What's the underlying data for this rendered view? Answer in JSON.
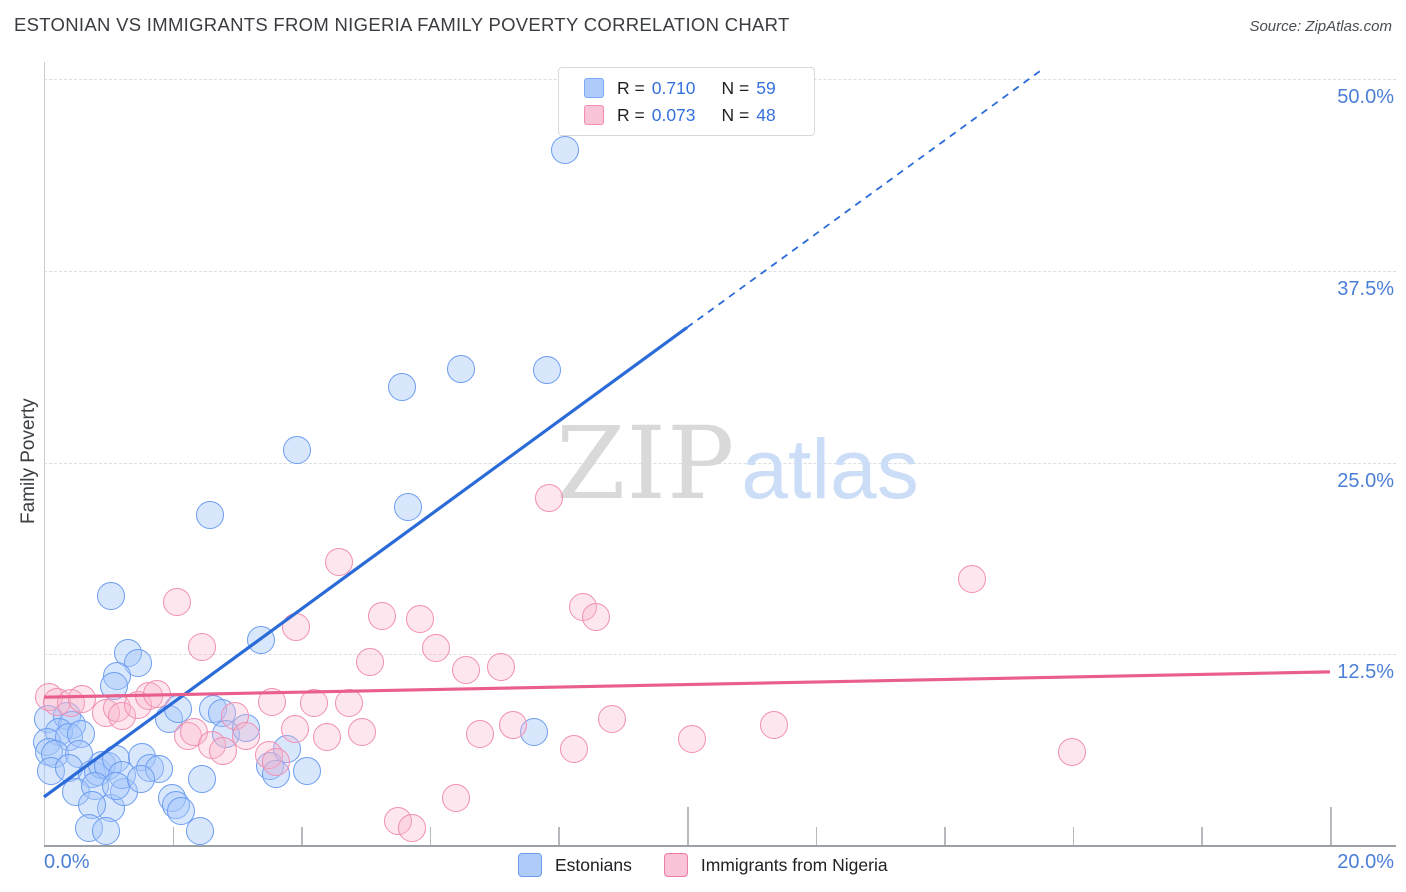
{
  "header": {
    "title": "ESTONIAN VS IMMIGRANTS FROM NIGERIA FAMILY POVERTY CORRELATION CHART",
    "source": "Source: ZipAtlas.com"
  },
  "watermark": {
    "zip": "ZIP",
    "atlas": "atlas"
  },
  "axes": {
    "y_title": "Family Poverty",
    "y_tick_labels": [
      "50.0%",
      "37.5%",
      "25.0%",
      "12.5%"
    ],
    "x_left_label": "0.0%",
    "x_right_label": "20.0%"
  },
  "legend_box": {
    "rows": [
      {
        "r_label": "R =",
        "r_value": "0.710",
        "n_label": "N =",
        "n_value": "59"
      },
      {
        "r_label": "R =",
        "r_value": "0.073",
        "n_label": "N =",
        "n_value": "48"
      }
    ]
  },
  "legend_bottom": {
    "items": [
      {
        "label": "Estonians"
      },
      {
        "label": "Immigrants from Nigeria"
      }
    ]
  },
  "colors": {
    "blue_fill": "#aecbfa",
    "blue_stroke": "#6d9df0",
    "blue_trend": "#2a6bd8",
    "pink_fill": "#f9c4d8",
    "pink_stroke": "#f18fb2",
    "pink_trend": "#e95e8c",
    "tick_label_blue": "#4b7fd6",
    "grid": "#dbdee2"
  },
  "chart_data": {
    "type": "scatter",
    "title": "ESTONIAN VS IMMIGRANTS FROM NIGERIA FAMILY POVERTY CORRELATION CHART",
    "xlabel": "",
    "ylabel": "Family Poverty",
    "x_range_percent": [
      0,
      20
    ],
    "y_range_percent": [
      0,
      51
    ],
    "gridlines_y_percent": [
      50,
      37.5,
      25,
      12.5
    ],
    "x_minor_ticks_percent": [
      2,
      4,
      6,
      8,
      12,
      14,
      16,
      18
    ],
    "x_major_ticks_percent": [
      10,
      20
    ],
    "legend_position": "bottom",
    "series": [
      {
        "name": "Estonians",
        "R": 0.71,
        "N": 59,
        "class": "s0",
        "points": [
          [
            8.11,
            45.4
          ],
          [
            6.48,
            31.1
          ],
          [
            7.83,
            31.0
          ],
          [
            5.57,
            29.9
          ],
          [
            3.93,
            25.8
          ],
          [
            5.66,
            22.1
          ],
          [
            2.58,
            21.6
          ],
          [
            1.04,
            16.3
          ],
          [
            1.31,
            12.6
          ],
          [
            1.46,
            11.9
          ],
          [
            1.13,
            11.1
          ],
          [
            1.09,
            10.4
          ],
          [
            3.37,
            13.4
          ],
          [
            0.06,
            8.3
          ],
          [
            0.36,
            8.5
          ],
          [
            0.44,
            7.9
          ],
          [
            0.23,
            7.4
          ],
          [
            0.05,
            6.8
          ],
          [
            0.39,
            7.1
          ],
          [
            0.58,
            7.3
          ],
          [
            0.08,
            6.1
          ],
          [
            0.17,
            6.0
          ],
          [
            0.54,
            6.0
          ],
          [
            0.11,
            4.9
          ],
          [
            0.39,
            5.1
          ],
          [
            0.75,
            4.7
          ],
          [
            0.84,
            4.8
          ],
          [
            0.9,
            5.3
          ],
          [
            0.99,
            5.2
          ],
          [
            1.12,
            5.7
          ],
          [
            0.5,
            3.5
          ],
          [
            0.79,
            3.9
          ],
          [
            1.04,
            2.5
          ],
          [
            0.75,
            2.7
          ],
          [
            1.24,
            3.5
          ],
          [
            1.21,
            4.6
          ],
          [
            1.12,
            3.9
          ],
          [
            1.52,
            5.8
          ],
          [
            1.65,
            5.1
          ],
          [
            1.79,
            5.0
          ],
          [
            1.51,
            4.4
          ],
          [
            0.7,
            1.2
          ],
          [
            0.96,
            1.0
          ],
          [
            1.94,
            8.3
          ],
          [
            2.08,
            8.9
          ],
          [
            2.63,
            8.9
          ],
          [
            2.77,
            8.7
          ],
          [
            2.83,
            7.3
          ],
          [
            3.14,
            7.7
          ],
          [
            1.99,
            3.1
          ],
          [
            2.05,
            2.7
          ],
          [
            2.13,
            2.3
          ],
          [
            2.46,
            4.4
          ],
          [
            2.42,
            1.0
          ],
          [
            3.51,
            5.2
          ],
          [
            3.61,
            4.7
          ],
          [
            4.09,
            4.9
          ],
          [
            3.78,
            6.3
          ],
          [
            7.62,
            7.4
          ]
        ]
      },
      {
        "name": "Immigrants from Nigeria",
        "R": 0.073,
        "N": 48,
        "class": "s1",
        "points": [
          [
            14.43,
            17.4
          ],
          [
            15.98,
            6.1
          ],
          [
            4.59,
            18.5
          ],
          [
            7.85,
            22.7
          ],
          [
            5.25,
            15.0
          ],
          [
            5.84,
            14.8
          ],
          [
            3.92,
            14.3
          ],
          [
            6.09,
            12.9
          ],
          [
            5.07,
            12.0
          ],
          [
            6.57,
            11.5
          ],
          [
            7.1,
            11.7
          ],
          [
            8.38,
            15.6
          ],
          [
            8.59,
            14.9
          ],
          [
            2.07,
            15.9
          ],
          [
            2.46,
            13.0
          ],
          [
            4.2,
            9.3
          ],
          [
            4.74,
            9.3
          ],
          [
            4.4,
            7.1
          ],
          [
            4.94,
            7.4
          ],
          [
            6.78,
            7.3
          ],
          [
            7.29,
            7.9
          ],
          [
            8.24,
            6.3
          ],
          [
            8.83,
            8.3
          ],
          [
            10.07,
            7.0
          ],
          [
            11.36,
            7.9
          ],
          [
            6.4,
            3.1
          ],
          [
            5.5,
            1.6
          ],
          [
            5.72,
            1.2
          ],
          [
            0.08,
            9.7
          ],
          [
            0.2,
            9.4
          ],
          [
            0.42,
            9.3
          ],
          [
            0.59,
            9.6
          ],
          [
            0.96,
            8.7
          ],
          [
            1.13,
            9.0
          ],
          [
            1.21,
            8.5
          ],
          [
            1.46,
            9.2
          ],
          [
            1.63,
            9.8
          ],
          [
            1.76,
            9.9
          ],
          [
            2.24,
            7.2
          ],
          [
            2.33,
            7.4
          ],
          [
            2.61,
            6.6
          ],
          [
            2.78,
            6.2
          ],
          [
            2.97,
            8.5
          ],
          [
            3.14,
            7.2
          ],
          [
            3.5,
            5.9
          ],
          [
            3.61,
            5.5
          ],
          [
            3.9,
            7.6
          ],
          [
            3.54,
            9.4
          ]
        ]
      }
    ],
    "trend_lines": [
      {
        "series": "Estonians",
        "style": "solid",
        "color": "#2a6bd8",
        "width": 3.2,
        "from": [
          0,
          3.2
        ],
        "to": [
          10.0,
          33.8
        ]
      },
      {
        "series": "Estonians",
        "style": "dashed",
        "color": "#2a6bd8",
        "width": 1.8,
        "from": [
          10.0,
          33.8
        ],
        "to": [
          15.55,
          50.7
        ]
      },
      {
        "series": "Immigrants from Nigeria",
        "style": "solid",
        "color": "#e95e8c",
        "width": 3.2,
        "from": [
          0,
          9.7
        ],
        "to": [
          20,
          11.35
        ]
      }
    ]
  }
}
